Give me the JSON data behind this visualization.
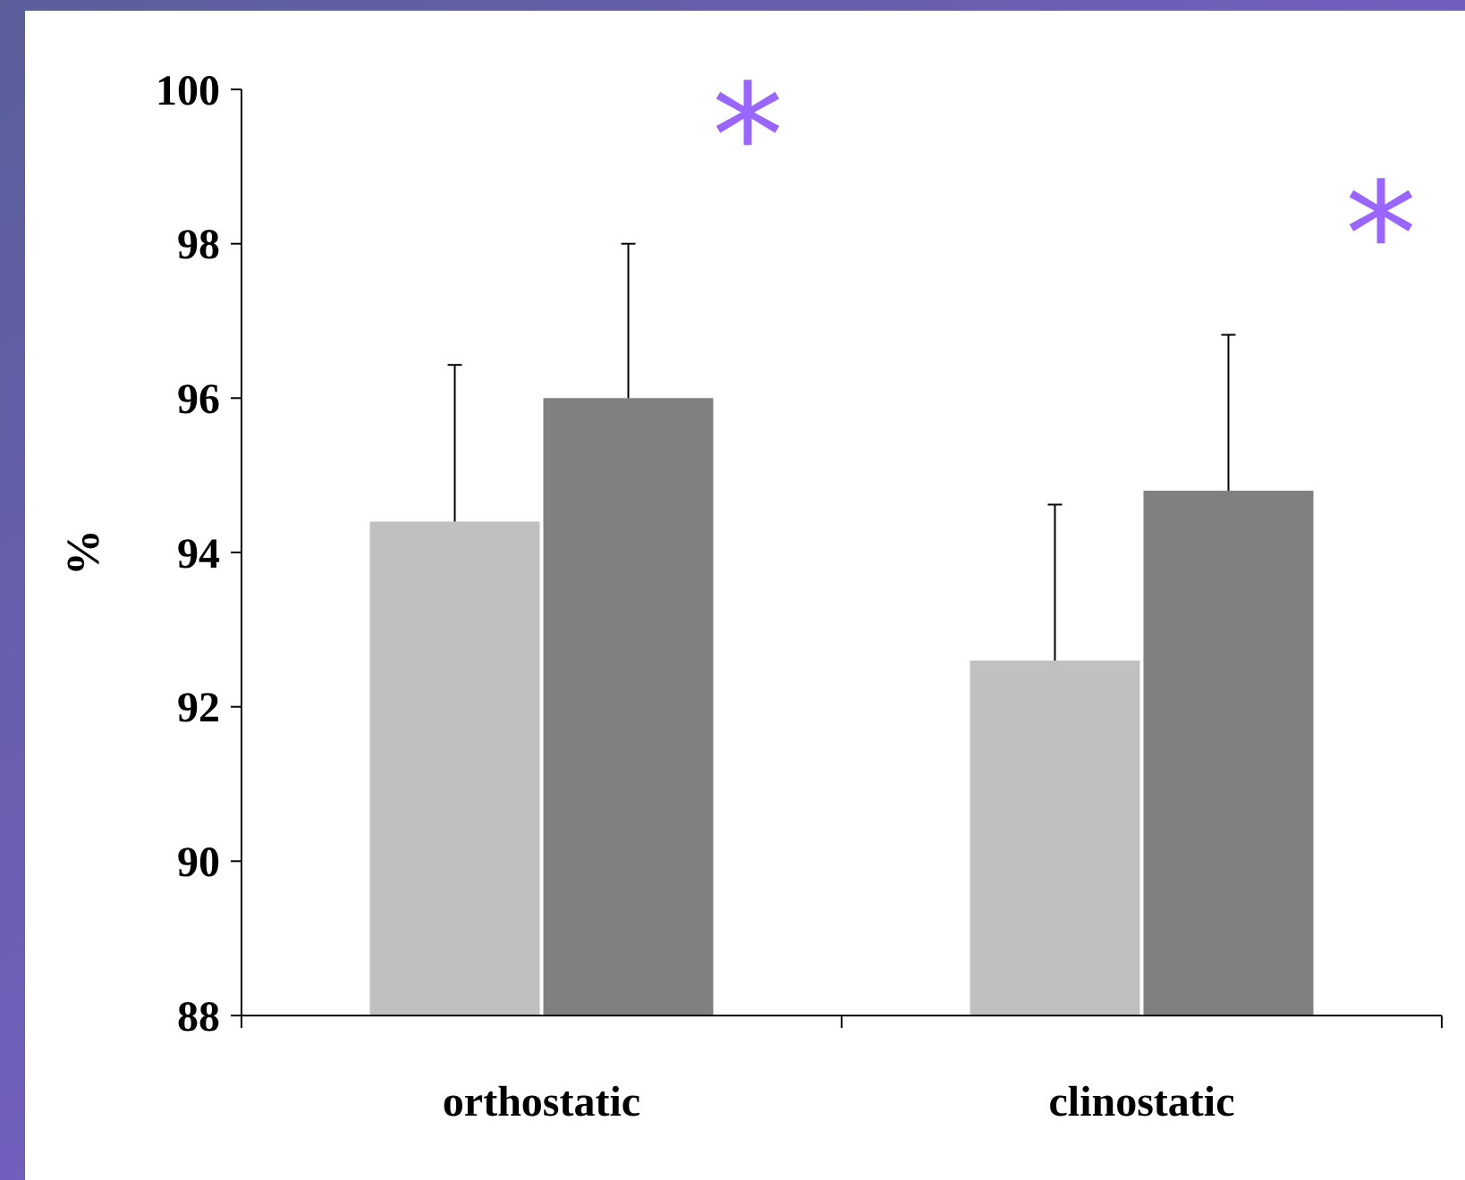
{
  "chart_data": {
    "type": "bar",
    "ylabel": "%",
    "categories": [
      "orthostatic",
      "clinostatic"
    ],
    "ylim": [
      88,
      100
    ],
    "yticks": [
      88,
      90,
      92,
      94,
      96,
      98,
      100
    ],
    "grid": false,
    "series": [
      {
        "color": "#c0c0c0",
        "values": [
          94.4,
          92.6
        ],
        "errors": [
          [
            94.4,
            96.43
          ],
          [
            92.6,
            94.62
          ]
        ]
      },
      {
        "color": "#808080",
        "values": [
          96.0,
          94.8
        ],
        "errors": [
          [
            96.0,
            98.0
          ],
          [
            94.8,
            96.82
          ]
        ]
      }
    ],
    "annotations": [
      "*",
      "*"
    ]
  }
}
